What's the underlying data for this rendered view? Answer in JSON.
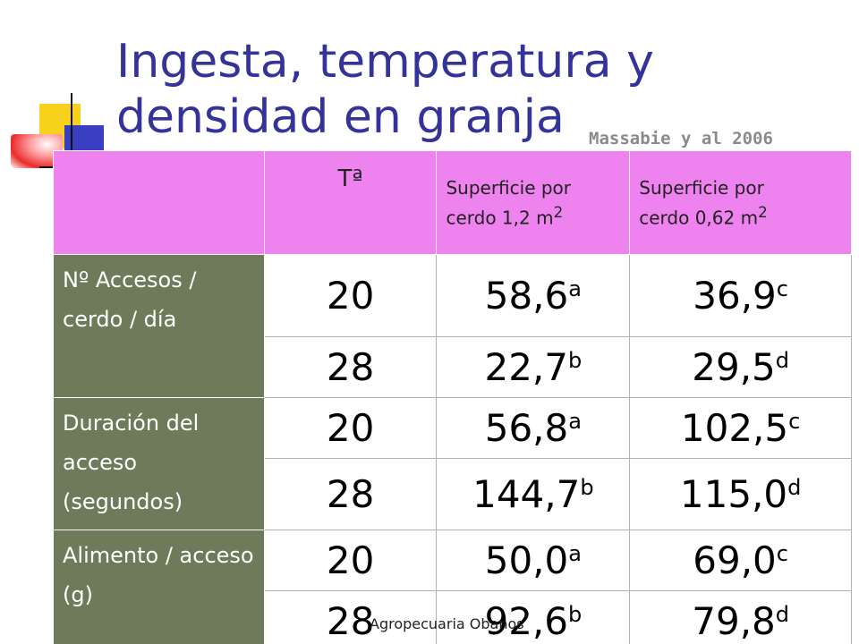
{
  "slide": {
    "title": "Ingesta, temperatura y densidad en granja",
    "source": "Massabie y al 2006",
    "footer": "Agropecuaria Obanos"
  },
  "colors": {
    "title": "#333399",
    "header_bg": "#ee82ee",
    "label_bg": "#6e7b5b"
  },
  "table": {
    "headers": {
      "empty": "",
      "temp": "Tª",
      "col1_line1": "Superficie por",
      "col1_line2": "cerdo 1,2 m",
      "col1_sup": "2",
      "col2_line1": "Superficie por",
      "col2_line2": "cerdo 0,62 m",
      "col2_sup": "2"
    },
    "groups": [
      {
        "label": "Nº Accesos / cerdo / día",
        "rows": [
          {
            "temp": "20",
            "v1": "58,6",
            "s1": "a",
            "v2": "36,9",
            "s2": "c"
          },
          {
            "temp": "28",
            "v1": "22,7",
            "s1": "b",
            "v2": "29,5",
            "s2": "d"
          }
        ]
      },
      {
        "label": "Duración del acceso (segundos)",
        "rows": [
          {
            "temp": "20",
            "v1": "56,8",
            "s1": "a",
            "v2": "102,5",
            "s2": "c"
          },
          {
            "temp": "28",
            "v1": "144,7",
            "s1": "b",
            "v2": "115,0",
            "s2": "d"
          }
        ]
      },
      {
        "label": "Alimento / acceso (g)",
        "rows": [
          {
            "temp": "20",
            "v1": "50,0",
            "s1": "a",
            "v2": "69,0",
            "s2": "c"
          },
          {
            "temp": "28",
            "v1": "92,6",
            "s1": "b",
            "v2": "79,8",
            "s2": "d"
          }
        ]
      }
    ]
  }
}
